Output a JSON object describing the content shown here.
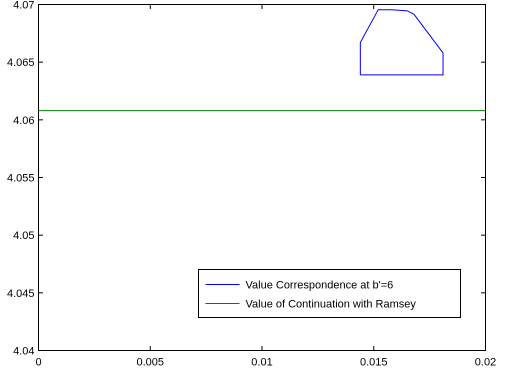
{
  "chart_data": {
    "type": "line",
    "title": "",
    "xlabel": "",
    "ylabel": "",
    "xlim": [
      0,
      0.02
    ],
    "ylim": [
      4.04,
      4.07
    ],
    "xticks": [
      0,
      0.005,
      0.01,
      0.015,
      0.02
    ],
    "xtick_labels": [
      "0",
      "0.005",
      "0.01",
      "0.015",
      "0.02"
    ],
    "yticks": [
      4.04,
      4.045,
      4.05,
      4.055,
      4.06,
      4.065,
      4.07
    ],
    "ytick_labels": [
      "4.04",
      "4.045",
      "4.05",
      "4.055",
      "4.06",
      "4.065",
      "4.07"
    ],
    "grid": false,
    "legend_position": "bottom-right",
    "series": [
      {
        "name": "Value Correspondence at b'=6",
        "color": "#0000ff",
        "x": [
          0.0144,
          0.0144,
          0.0152,
          0.0158,
          0.0165,
          0.0168,
          0.0181,
          0.0181,
          0.0144
        ],
        "y": [
          4.0639,
          4.0667,
          4.06955,
          4.06955,
          4.06945,
          4.06915,
          4.0658,
          4.0639,
          4.0639
        ]
      },
      {
        "name": "Value of Continuation with Ramsey",
        "color": "#008000",
        "x": [
          0,
          0.02
        ],
        "y": [
          4.0608,
          4.0608
        ]
      }
    ]
  }
}
